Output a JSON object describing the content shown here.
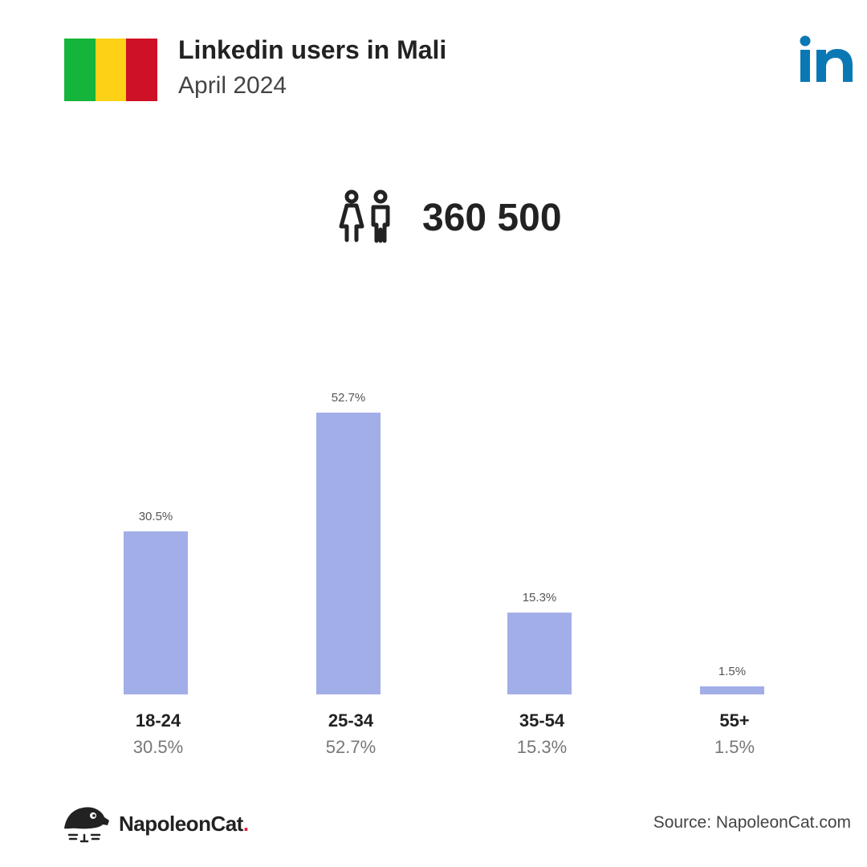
{
  "header": {
    "title": "Linkedin users in Mali",
    "subtitle": "April 2024",
    "flag_colors": [
      "#14b53a",
      "#fcd116",
      "#ce1126"
    ],
    "platform_icon": "linkedin-logo",
    "platform_color": "#0a78b5"
  },
  "summary": {
    "icon": "people-icon",
    "total_users": "360 500"
  },
  "chart_data": {
    "type": "bar",
    "categories": [
      "18-24",
      "25-34",
      "35-54",
      "55+"
    ],
    "values": [
      30.5,
      52.7,
      15.3,
      1.5
    ],
    "value_labels": [
      "30.5%",
      "52.7%",
      "15.3%",
      "1.5%"
    ],
    "unit": "%",
    "ylim": [
      0,
      52.7
    ],
    "bar_color": "#a2aee8",
    "grid": false,
    "legend": "none"
  },
  "footer": {
    "brand_icon": "napoleoncat-logo",
    "brand_name": "NapoleonCat",
    "brand_dot": ".",
    "source": "Source: NapoleonCat.com"
  }
}
